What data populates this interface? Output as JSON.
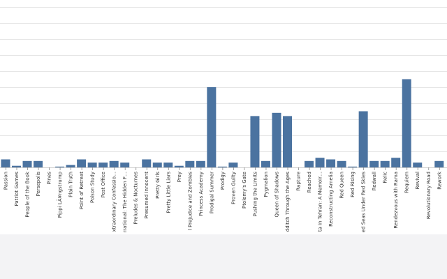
{
  "chart_data": {
    "type": "bar",
    "categories": [
      "",
      "Passion",
      "Patriot Games",
      "People of the Book",
      "Persepolis",
      "Pines",
      "Pippi LÃ¥ngstrump",
      "Plain Truth",
      "Point of Retreat",
      "Poison Study",
      "Post Office",
      "xtraordinary Confessio…",
      "rrational: The Hidden F…",
      "Preludes & Nocturnes",
      "Presumed Innocent",
      "Pretty Girls",
      "Pretty Little Liars",
      "Prey",
      "l Prejudice and Zombies",
      "Princess Academy",
      "Prodigal Summer",
      "Prodigy",
      "Proven Guilty",
      "Ptolemy's Gate",
      "Pushing the Limits",
      "Pygmalion",
      "Queen of Shadows",
      "dditch Through the Ages",
      "Rapture",
      "Reached",
      "ta in Tehran: A Memoir…",
      "Reconstructing Amelia",
      "Red Queen",
      "Red Rising",
      "ed Seas Under Red Skies",
      "Redwall",
      "Relic",
      "Rendezvous with Rama",
      "Requiem",
      "Revival",
      "Revolutionary Road",
      "Rework"
    ],
    "values": [
      5,
      5,
      1,
      4,
      4,
      0,
      0.5,
      1.5,
      5,
      3,
      3,
      4,
      3,
      0,
      5,
      3,
      3,
      1,
      4,
      4,
      50,
      0.5,
      3,
      0,
      32,
      4,
      34,
      32,
      0,
      4,
      6,
      5,
      4,
      0.5,
      35,
      4,
      4,
      6,
      55,
      3,
      0,
      4
    ],
    "bar_color": "#4b73a0",
    "ylim": [
      0,
      105
    ],
    "gridlines": [
      0,
      10,
      20,
      30,
      40,
      50,
      60,
      70,
      80,
      90,
      100
    ],
    "grid": true
  }
}
